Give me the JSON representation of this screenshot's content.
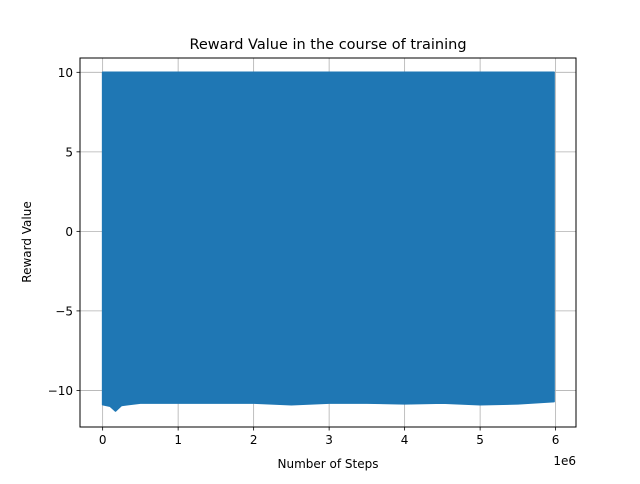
{
  "chart_data": {
    "type": "line",
    "title": "Reward Value in the course of training",
    "xlabel": "Number of Steps",
    "ylabel": "Reward Value",
    "x_offset_text": "1e6",
    "xlim": [
      -0.3,
      6.27
    ],
    "ylim": [
      -12.3,
      10.9
    ],
    "xticks": [
      {
        "value": 0,
        "label": "0"
      },
      {
        "value": 1,
        "label": "1"
      },
      {
        "value": 2,
        "label": "2"
      },
      {
        "value": 3,
        "label": "3"
      },
      {
        "value": 4,
        "label": "4"
      },
      {
        "value": 5,
        "label": "5"
      },
      {
        "value": 6,
        "label": "6"
      }
    ],
    "yticks": [
      {
        "value": 10,
        "label": "10"
      },
      {
        "value": 5,
        "label": "5"
      },
      {
        "value": 0,
        "label": "0"
      },
      {
        "value": -5,
        "label": "−5"
      },
      {
        "value": -10,
        "label": "−10"
      }
    ],
    "grid": true,
    "series": [
      {
        "color": "#1f77b4",
        "x_range": [
          0,
          5.98
        ],
        "upper_envelope": 10,
        "lower_envelope": [
          {
            "x": 0.0,
            "y": -10.9
          },
          {
            "x": 0.1,
            "y": -11.0
          },
          {
            "x": 0.17,
            "y": -11.3
          },
          {
            "x": 0.25,
            "y": -10.95
          },
          {
            "x": 0.5,
            "y": -10.8
          },
          {
            "x": 1.0,
            "y": -10.8
          },
          {
            "x": 1.5,
            "y": -10.8
          },
          {
            "x": 2.0,
            "y": -10.8
          },
          {
            "x": 2.5,
            "y": -10.9
          },
          {
            "x": 3.0,
            "y": -10.8
          },
          {
            "x": 3.5,
            "y": -10.8
          },
          {
            "x": 4.0,
            "y": -10.85
          },
          {
            "x": 4.5,
            "y": -10.8
          },
          {
            "x": 5.0,
            "y": -10.9
          },
          {
            "x": 5.5,
            "y": -10.85
          },
          {
            "x": 5.98,
            "y": -10.7
          }
        ]
      }
    ]
  }
}
